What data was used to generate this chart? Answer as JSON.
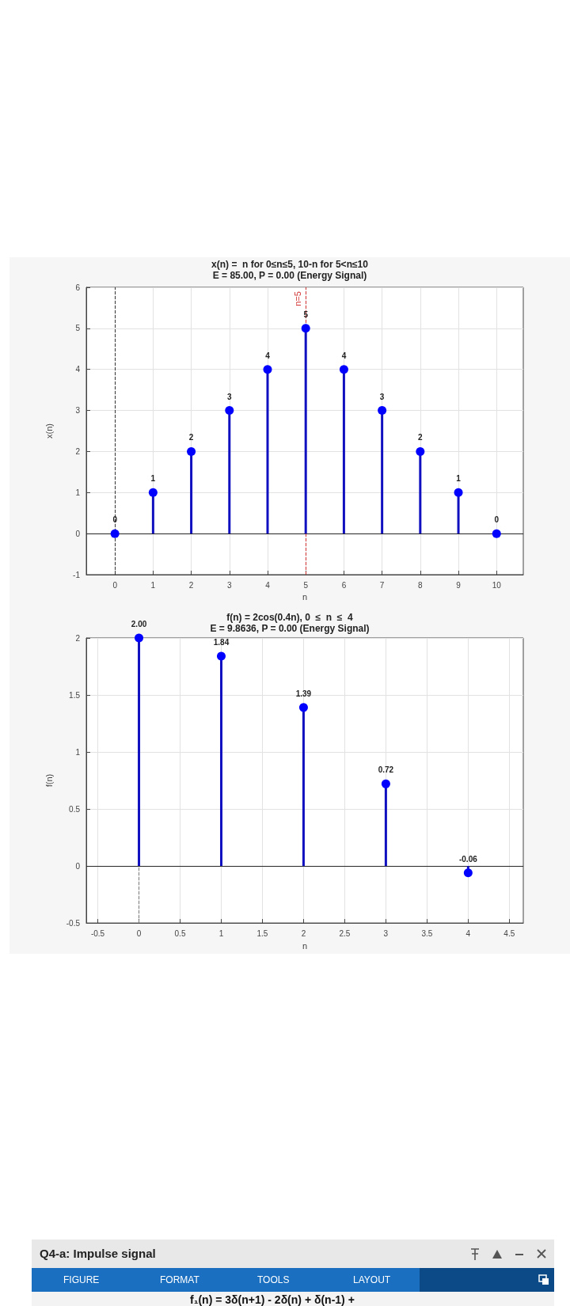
{
  "chart_data": [
    {
      "type": "lollipop",
      "title": "x(n) =  n for 0≤n≤5, 10-n for 5<n≤10",
      "subtitle": "E = 85.00, P = 0.00 (Energy Signal)",
      "xlabel": "n",
      "ylabel": "x(n)",
      "x": [
        0,
        1,
        2,
        3,
        4,
        5,
        6,
        7,
        8,
        9,
        10
      ],
      "series": [
        {
          "color": "#0000ff",
          "values": [
            0,
            1,
            2,
            3,
            4,
            5,
            4,
            3,
            2,
            1,
            0
          ]
        }
      ],
      "xlim": [
        -0.75,
        10.7
      ],
      "xticks": [
        0,
        1,
        2,
        3,
        4,
        5,
        6,
        7,
        8,
        9,
        10
      ],
      "ylim": [
        -1,
        6
      ],
      "yticks": [
        -1,
        0,
        1,
        2,
        3,
        4,
        5,
        6
      ],
      "data_labels": true,
      "grid": true,
      "marker": "circle",
      "ref_lines": [
        {
          "axis": "y",
          "value": 0,
          "color": "#262626",
          "line_style": "solid"
        },
        {
          "axis": "x",
          "value": 0,
          "color": "#333333",
          "line_style": "dashed"
        },
        {
          "axis": "x",
          "value": 5,
          "label": "n=5",
          "color": "#d03030",
          "line_style": "dashed"
        }
      ]
    },
    {
      "type": "lollipop",
      "title": "f(n) = 2cos(0.4n), 0  ≤  n  ≤  4",
      "subtitle": "E = 9.8636, P = 0.00 (Energy Signal)",
      "xlabel": "n",
      "ylabel": "f(n)",
      "x": [
        0,
        1,
        2,
        3,
        4
      ],
      "series": [
        {
          "color": "#0000ff",
          "values": [
            2.0,
            1.84,
            1.39,
            0.72,
            -0.06
          ],
          "value_labels": [
            "2.00",
            "1.84",
            "1.39",
            "0.72",
            "-0.06"
          ]
        }
      ],
      "xlim": [
        -0.64,
        4.67
      ],
      "xticks": [
        -0.5,
        0,
        0.5,
        1,
        1.5,
        2,
        2.5,
        3,
        3.5,
        4,
        4.5
      ],
      "ylim": [
        -0.5,
        2
      ],
      "yticks": [
        -0.5,
        0,
        0.5,
        1,
        1.5,
        2
      ],
      "grid": true,
      "marker": "circle",
      "ref_lines": [
        {
          "axis": "y",
          "value": 0,
          "color": "#262626",
          "line_style": "solid"
        },
        {
          "axis": "x",
          "value": 0,
          "color": "#777777",
          "line_style": "dashed"
        }
      ]
    },
    {
      "type": "other",
      "title": "Q4-a: Impulse signal",
      "subtitle": "f₁(n) = 3δ(n+1) - 2δ(n) + δ(n-1) +",
      "annotations": [
        "FIGURE",
        "FORMAT",
        "TOOLS",
        "LAYOUT"
      ]
    }
  ]
}
